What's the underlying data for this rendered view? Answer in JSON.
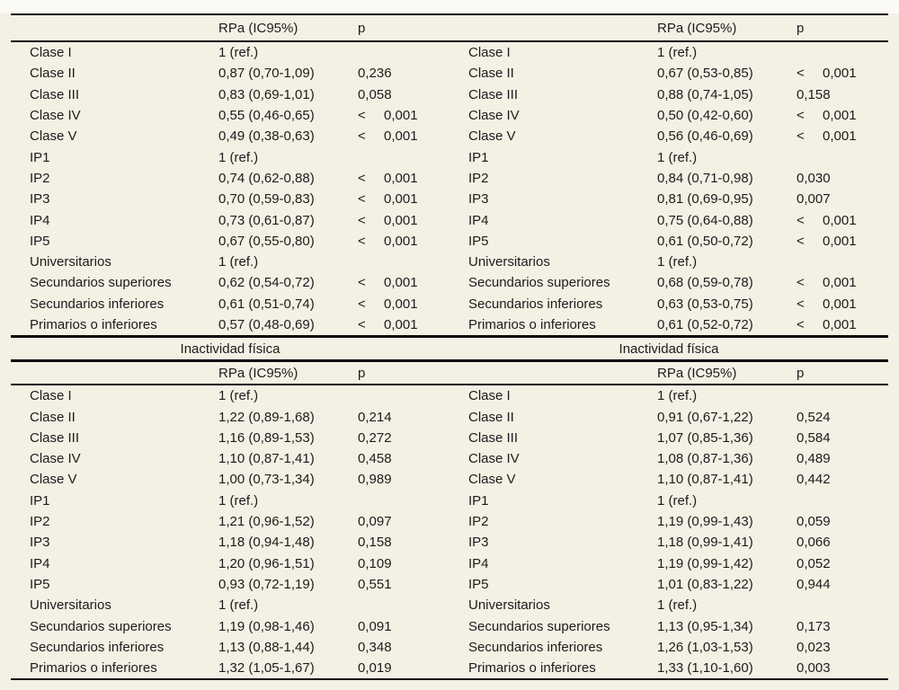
{
  "colors": {
    "page_background": "#fbfaf5",
    "table_background": "#f3f0e4",
    "rule": "#0a0a0a",
    "text": "#1c1c1c"
  },
  "headers": {
    "rpa": "RPa (IC95%)",
    "p": "p"
  },
  "section": {
    "left_title": "Inactividad física",
    "right_title": "Inactividad física"
  },
  "table1": {
    "left": {
      "rows": [
        {
          "label": "Clase I",
          "rpa": "1 (ref.)",
          "p_lt": "",
          "p": ""
        },
        {
          "label": "Clase II",
          "rpa": "0,87 (0,70-1,09)",
          "p_lt": "",
          "p": "0,236"
        },
        {
          "label": "Clase III",
          "rpa": "0,83 (0,69-1,01)",
          "p_lt": "",
          "p": "0,058"
        },
        {
          "label": "Clase IV",
          "rpa": "0,55 (0,46-0,65)",
          "p_lt": "<",
          "p": "0,001"
        },
        {
          "label": "Clase V",
          "rpa": "0,49 (0,38-0,63)",
          "p_lt": "<",
          "p": "0,001"
        },
        {
          "label": "IP1",
          "rpa": "1 (ref.)",
          "p_lt": "",
          "p": ""
        },
        {
          "label": "IP2",
          "rpa": "0,74 (0,62-0,88)",
          "p_lt": "<",
          "p": "0,001"
        },
        {
          "label": "IP3",
          "rpa": "0,70 (0,59-0,83)",
          "p_lt": "<",
          "p": "0,001"
        },
        {
          "label": "IP4",
          "rpa": "0,73 (0,61-0,87)",
          "p_lt": "<",
          "p": "0,001"
        },
        {
          "label": "IP5",
          "rpa": "0,67 (0,55-0,80)",
          "p_lt": "<",
          "p": "0,001"
        },
        {
          "label": "Universitarios",
          "rpa": "1 (ref.)",
          "p_lt": "",
          "p": ""
        },
        {
          "label": "Secundarios superiores",
          "rpa": "0,62 (0,54-0,72)",
          "p_lt": "<",
          "p": "0,001"
        },
        {
          "label": "Secundarios inferiores",
          "rpa": "0,61 (0,51-0,74)",
          "p_lt": "<",
          "p": "0,001"
        },
        {
          "label": "Primarios o inferiores",
          "rpa": "0,57 (0,48-0,69)",
          "p_lt": "<",
          "p": "0,001"
        }
      ]
    },
    "right": {
      "rows": [
        {
          "label": "Clase I",
          "rpa": "1 (ref.)",
          "p_lt": "",
          "p": ""
        },
        {
          "label": "Clase II",
          "rpa": "0,67 (0,53-0,85)",
          "p_lt": "<",
          "p": "0,001"
        },
        {
          "label": "Clase III",
          "rpa": "0,88 (0,74-1,05)",
          "p_lt": "",
          "p": "0,158"
        },
        {
          "label": "Clase IV",
          "rpa": "0,50 (0,42-0,60)",
          "p_lt": "<",
          "p": "0,001"
        },
        {
          "label": "Clase V",
          "rpa": "0,56 (0,46-0,69)",
          "p_lt": "<",
          "p": "0,001"
        },
        {
          "label": "IP1",
          "rpa": "1 (ref.)",
          "p_lt": "",
          "p": ""
        },
        {
          "label": "IP2",
          "rpa": "0,84 (0,71-0,98)",
          "p_lt": "",
          "p": "0,030"
        },
        {
          "label": "IP3",
          "rpa": "0,81 (0,69-0,95)",
          "p_lt": "",
          "p": "0,007"
        },
        {
          "label": "IP4",
          "rpa": "0,75 (0,64-0,88)",
          "p_lt": "<",
          "p": "0,001"
        },
        {
          "label": "IP5",
          "rpa": "0,61 (0,50-0,72)",
          "p_lt": "<",
          "p": "0,001"
        },
        {
          "label": "Universitarios",
          "rpa": "1 (ref.)",
          "p_lt": "",
          "p": ""
        },
        {
          "label": "Secundarios superiores",
          "rpa": "0,68 (0,59-0,78)",
          "p_lt": "<",
          "p": "0,001"
        },
        {
          "label": "Secundarios inferiores",
          "rpa": "0,63 (0,53-0,75)",
          "p_lt": "<",
          "p": "0,001"
        },
        {
          "label": "Primarios o inferiores",
          "rpa": "0,61 (0,52-0,72)",
          "p_lt": "<",
          "p": "0,001"
        }
      ]
    }
  },
  "table2": {
    "left": {
      "rows": [
        {
          "label": "Clase I",
          "rpa": "1 (ref.)",
          "p_lt": "",
          "p": ""
        },
        {
          "label": "Clase II",
          "rpa": "1,22 (0,89-1,68)",
          "p_lt": "",
          "p": "0,214"
        },
        {
          "label": "Clase III",
          "rpa": "1,16 (0,89-1,53)",
          "p_lt": "",
          "p": "0,272"
        },
        {
          "label": "Clase IV",
          "rpa": "1,10 (0,87-1,41)",
          "p_lt": "",
          "p": "0,458"
        },
        {
          "label": "Clase V",
          "rpa": "1,00 (0,73-1,34)",
          "p_lt": "",
          "p": "0,989"
        },
        {
          "label": "IP1",
          "rpa": "1 (ref.)",
          "p_lt": "",
          "p": ""
        },
        {
          "label": "IP2",
          "rpa": "1,21 (0,96-1,52)",
          "p_lt": "",
          "p": "0,097"
        },
        {
          "label": "IP3",
          "rpa": "1,18 (0,94-1,48)",
          "p_lt": "",
          "p": "0,158"
        },
        {
          "label": "IP4",
          "rpa": "1,20 (0,96-1,51)",
          "p_lt": "",
          "p": "0,109"
        },
        {
          "label": "IP5",
          "rpa": "0,93 (0,72-1,19)",
          "p_lt": "",
          "p": "0,551"
        },
        {
          "label": "Universitarios",
          "rpa": "1 (ref.)",
          "p_lt": "",
          "p": ""
        },
        {
          "label": "Secundarios superiores",
          "rpa": "1,19 (0,98-1,46)",
          "p_lt": "",
          "p": "0,091"
        },
        {
          "label": "Secundarios inferiores",
          "rpa": "1,13 (0,88-1,44)",
          "p_lt": "",
          "p": "0,348"
        },
        {
          "label": "Primarios o inferiores",
          "rpa": "1,32 (1,05-1,67)",
          "p_lt": "",
          "p": "0,019"
        }
      ]
    },
    "right": {
      "rows": [
        {
          "label": "Clase I",
          "rpa": "1 (ref.)",
          "p_lt": "",
          "p": ""
        },
        {
          "label": "Clase II",
          "rpa": "0,91 (0,67-1,22)",
          "p_lt": "",
          "p": "0,524"
        },
        {
          "label": "Clase III",
          "rpa": "1,07 (0,85-1,36)",
          "p_lt": "",
          "p": "0,584"
        },
        {
          "label": "Clase IV",
          "rpa": "1,08 (0,87-1,36)",
          "p_lt": "",
          "p": "0,489"
        },
        {
          "label": "Clase V",
          "rpa": "1,10 (0,87-1,41)",
          "p_lt": "",
          "p": "0,442"
        },
        {
          "label": "IP1",
          "rpa": "1 (ref.)",
          "p_lt": "",
          "p": ""
        },
        {
          "label": "IP2",
          "rpa": "1,19 (0,99-1,43)",
          "p_lt": "",
          "p": "0,059"
        },
        {
          "label": "IP3",
          "rpa": "1,18 (0,99-1,41)",
          "p_lt": "",
          "p": "0,066"
        },
        {
          "label": "IP4",
          "rpa": "1,19 (0,99-1,42)",
          "p_lt": "",
          "p": "0,052"
        },
        {
          "label": "IP5",
          "rpa": "1,01 (0,83-1,22)",
          "p_lt": "",
          "p": "0,944"
        },
        {
          "label": "Universitarios",
          "rpa": "1 (ref.)",
          "p_lt": "",
          "p": ""
        },
        {
          "label": "Secundarios superiores",
          "rpa": "1,13 (0,95-1,34)",
          "p_lt": "",
          "p": "0,173"
        },
        {
          "label": "Secundarios inferiores",
          "rpa": "1,26 (1,03-1,53)",
          "p_lt": "",
          "p": "0,023"
        },
        {
          "label": "Primarios o inferiores",
          "rpa": "1,33 (1,10-1,60)",
          "p_lt": "",
          "p": "0,003"
        }
      ]
    }
  }
}
